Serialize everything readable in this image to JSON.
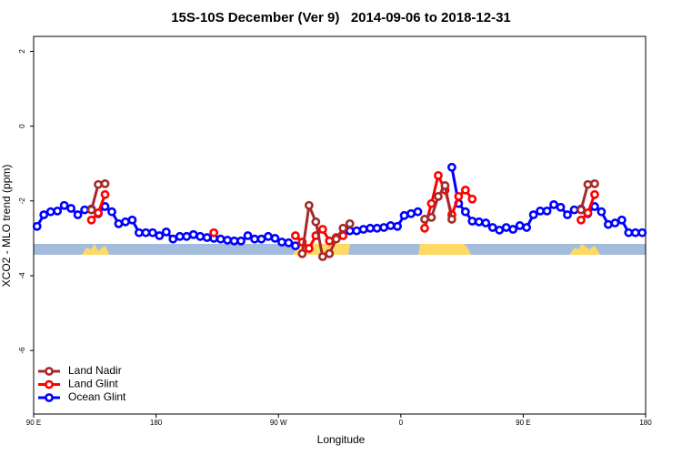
{
  "chart_data": {
    "type": "line",
    "title": "15S-10S December (Ver 9)   2014-09-06 to 2018-12-31",
    "x_label": "Longitude",
    "y_label": "XCO2 - MLO trend (ppm)",
    "xlim": [
      90,
      540
    ],
    "xticks": [
      {
        "value": 90,
        "label": "90 E"
      },
      180,
      {
        "value": 270,
        "label": "90 W"
      },
      {
        "value": 360,
        "label": "0"
      },
      {
        "value": 450,
        "label": "90 E"
      },
      {
        "value": 540,
        "label": "180"
      }
    ],
    "ylim": [
      -7.7,
      2.4
    ],
    "yticks": [
      -6,
      -4,
      -2,
      0,
      2
    ],
    "legend": "bottom-left",
    "x": [
      92.5,
      97.5,
      102.5,
      107.5,
      112.5,
      117.5,
      122.5,
      127.5,
      132.5,
      137.5,
      142.5,
      147.5,
      152.5,
      157.5,
      162.5,
      167.5,
      172.5,
      177.5,
      182.5,
      187.5,
      192.5,
      197.5,
      202.5,
      207.5,
      212.5,
      217.5,
      222.5,
      227.5,
      232.5,
      237.5,
      242.5,
      247.5,
      252.5,
      257.5,
      262.5,
      267.5,
      272.5,
      277.5,
      282.5,
      287.5,
      292.5,
      297.5,
      302.5,
      307.5,
      312.5,
      317.5,
      322.5,
      327.5,
      332.5,
      337.5,
      342.5,
      347.5,
      352.5,
      357.5,
      362.5,
      367.5,
      372.5,
      377.5,
      382.5,
      387.5,
      392.5,
      397.5,
      402.5,
      407.5,
      412.5,
      417.5,
      422.5,
      427.5,
      432.5,
      437.5,
      442.5,
      447.5,
      452.5,
      457.5,
      462.5,
      467.5,
      472.5,
      477.5,
      482.5,
      487.5,
      492.5,
      497.5,
      502.5,
      507.5,
      512.5,
      517.5,
      522.5,
      527.5,
      532.5,
      537.5
    ],
    "series": [
      {
        "name": "Land Nadir",
        "color": "#a52a2a",
        "values": [
          null,
          null,
          null,
          null,
          null,
          null,
          null,
          null,
          -2.24,
          -1.56,
          -1.54,
          null,
          null,
          null,
          null,
          null,
          null,
          null,
          null,
          null,
          null,
          null,
          null,
          null,
          null,
          null,
          null,
          null,
          null,
          null,
          null,
          null,
          null,
          null,
          null,
          null,
          null,
          null,
          null,
          -3.41,
          -2.12,
          -2.56,
          -3.49,
          -3.41,
          -3.02,
          -2.73,
          -2.61,
          null,
          null,
          null,
          null,
          null,
          null,
          null,
          null,
          null,
          null,
          -2.49,
          -2.44,
          -1.88,
          -1.59,
          -2.49,
          null,
          null,
          null,
          null,
          null,
          null,
          null,
          null,
          null,
          null,
          null,
          null,
          null,
          null,
          null,
          null,
          null,
          null,
          -2.24,
          -1.56,
          -1.54,
          null,
          null,
          null,
          null,
          null,
          null,
          null
        ]
      },
      {
        "name": "Land Glint",
        "color": "#ff0000",
        "values": [
          null,
          null,
          null,
          null,
          null,
          null,
          null,
          null,
          -2.51,
          -2.32,
          -1.83,
          null,
          null,
          null,
          null,
          null,
          null,
          null,
          null,
          null,
          null,
          null,
          null,
          null,
          null,
          null,
          -2.85,
          null,
          null,
          null,
          null,
          null,
          null,
          null,
          null,
          null,
          null,
          null,
          -2.93,
          -3.1,
          -3.27,
          -2.93,
          -2.76,
          -3.07,
          -2.98,
          -2.93,
          null,
          null,
          null,
          null,
          null,
          null,
          null,
          null,
          null,
          null,
          null,
          -2.73,
          -2.07,
          -1.32,
          -1.71,
          -2.37,
          -1.88,
          -1.71,
          -1.95,
          null,
          null,
          null,
          null,
          null,
          null,
          null,
          null,
          null,
          null,
          null,
          null,
          null,
          null,
          null,
          -2.51,
          -2.32,
          -1.83,
          null,
          null,
          null,
          null,
          null,
          null,
          null
        ]
      },
      {
        "name": "Ocean Glint",
        "color": "#0000ff",
        "values": [
          -2.68,
          -2.37,
          -2.29,
          -2.27,
          -2.12,
          -2.2,
          -2.37,
          -2.24,
          -2.22,
          -2.34,
          -2.15,
          -2.29,
          -2.61,
          -2.56,
          -2.51,
          -2.85,
          -2.85,
          -2.85,
          -2.93,
          -2.83,
          -3.02,
          -2.95,
          -2.95,
          -2.9,
          -2.95,
          -2.98,
          -3.0,
          -3.02,
          -3.05,
          -3.07,
          -3.07,
          -2.93,
          -3.02,
          -3.02,
          -2.95,
          -3.0,
          -3.1,
          -3.12,
          -3.2,
          null,
          null,
          null,
          null,
          null,
          null,
          null,
          -2.8,
          -2.8,
          -2.76,
          -2.73,
          -2.73,
          -2.71,
          -2.66,
          -2.68,
          -2.39,
          -2.34,
          -2.29,
          null,
          null,
          null,
          null,
          -1.1,
          -2.07,
          -2.29,
          -2.54,
          -2.56,
          -2.59,
          -2.71,
          -2.78,
          -2.71,
          -2.76,
          -2.66,
          -2.71,
          -2.37,
          -2.27,
          -2.27,
          -2.1,
          -2.17,
          -2.37,
          -2.24,
          -2.22,
          -2.34,
          -2.15,
          -2.29,
          -2.63,
          -2.59,
          -2.51,
          -2.85,
          -2.85,
          -2.85
        ]
      }
    ]
  }
}
